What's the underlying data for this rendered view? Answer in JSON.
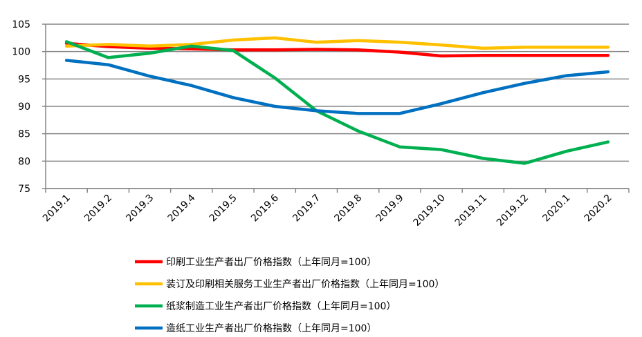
{
  "chart_data": {
    "type": "line",
    "title": "",
    "xlabel": "",
    "ylabel": "",
    "ylim": [
      75,
      105
    ],
    "yticks": [
      75,
      80,
      85,
      90,
      95,
      100,
      105
    ],
    "grid": true,
    "legend_position": "bottom",
    "categories": [
      "2019.1",
      "2019.2",
      "2019.3",
      "2019.4",
      "2019.5",
      "2019.6",
      "2019.7",
      "2019.8",
      "2019.9",
      "2019.10",
      "2019.11",
      "2019.12",
      "2020.1",
      "2020.2"
    ],
    "series": [
      {
        "name": "印刷工业生产者出厂价格指数（上年同月=100）",
        "color": "#ff0000",
        "values": [
          101.5,
          100.9,
          100.6,
          100.5,
          100.3,
          100.3,
          100.4,
          100.3,
          99.9,
          99.2,
          99.3,
          99.3,
          99.3,
          99.3
        ]
      },
      {
        "name": "装订及印刷相关服务工业生产者出厂价格指数（上年同月=100）",
        "color": "#ffc000",
        "values": [
          101.0,
          101.3,
          101.0,
          101.3,
          102.1,
          102.5,
          101.7,
          102.0,
          101.7,
          101.2,
          100.6,
          100.8,
          100.8,
          100.8
        ]
      },
      {
        "name": "纸浆制造工业生产者出厂价格指数（上年同月=100）",
        "color": "#00b050",
        "values": [
          101.8,
          98.9,
          99.7,
          101.0,
          100.2,
          95.2,
          89.2,
          85.5,
          82.6,
          82.1,
          80.5,
          79.6,
          81.8,
          83.5
        ]
      },
      {
        "name": "造纸工业生产者出厂价格指数（上年同月=100）",
        "color": "#0070c0",
        "values": [
          98.4,
          97.6,
          95.5,
          93.8,
          91.6,
          90.0,
          89.2,
          88.7,
          88.7,
          90.5,
          92.5,
          94.2,
          95.6,
          96.3
        ]
      }
    ]
  }
}
